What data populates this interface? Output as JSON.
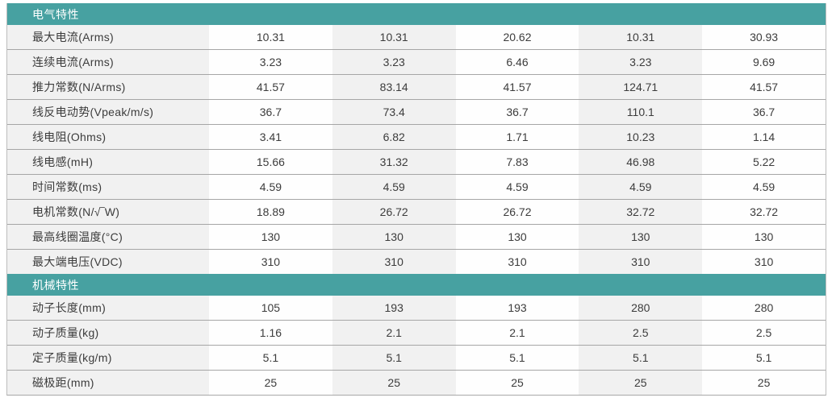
{
  "colors": {
    "section_header_bg": "#47a1a1",
    "section_header_text": "#ffffff",
    "shaded_column_bg": "#f1f1f1",
    "plain_column_bg": "#fefefe",
    "row_separator": "#a6a6a6",
    "text": "#3c3c3c"
  },
  "table": {
    "column_count": 5,
    "sections": [
      {
        "title": "电气特性",
        "rows": [
          {
            "label": "最大电流(Arms)",
            "values": [
              "10.31",
              "10.31",
              "20.62",
              "10.31",
              "30.93"
            ]
          },
          {
            "label": "连续电流(Arms)",
            "values": [
              "3.23",
              "3.23",
              "6.46",
              "3.23",
              "9.69"
            ]
          },
          {
            "label": "推力常数(N/Arms)",
            "values": [
              "41.57",
              "83.14",
              "41.57",
              "124.71",
              "41.57"
            ]
          },
          {
            "label": "线反电动势(Vpeak/m/s)",
            "values": [
              "36.7",
              "73.4",
              "36.7",
              "110.1",
              "36.7"
            ]
          },
          {
            "label": "线电阻(Ohms)",
            "values": [
              "3.41",
              "6.82",
              "1.71",
              "10.23",
              "1.14"
            ]
          },
          {
            "label": "线电感(mH)",
            "values": [
              "15.66",
              "31.32",
              "7.83",
              "46.98",
              "5.22"
            ]
          },
          {
            "label": "时间常数(ms)",
            "values": [
              "4.59",
              "4.59",
              "4.59",
              "4.59",
              "4.59"
            ]
          },
          {
            "label": "电机常数(N/√‾W)",
            "values": [
              "18.89",
              "26.72",
              "26.72",
              "32.72",
              "32.72"
            ]
          },
          {
            "label": "最高线圈温度(°C)",
            "values": [
              "130",
              "130",
              "130",
              "130",
              "130"
            ]
          },
          {
            "label": "最大端电压(VDC)",
            "values": [
              "310",
              "310",
              "310",
              "310",
              "310"
            ]
          }
        ]
      },
      {
        "title": "机械特性",
        "rows": [
          {
            "label": "动子长度(mm)",
            "values": [
              "105",
              "193",
              "193",
              "280",
              "280"
            ]
          },
          {
            "label": "动子质量(kg)",
            "values": [
              "1.16",
              "2.1",
              "2.1",
              "2.5",
              "2.5"
            ]
          },
          {
            "label": "定子质量(kg/m)",
            "values": [
              "5.1",
              "5.1",
              "5.1",
              "5.1",
              "5.1"
            ]
          },
          {
            "label": "磁极距(mm)",
            "values": [
              "25",
              "25",
              "25",
              "25",
              "25"
            ]
          }
        ]
      }
    ]
  }
}
